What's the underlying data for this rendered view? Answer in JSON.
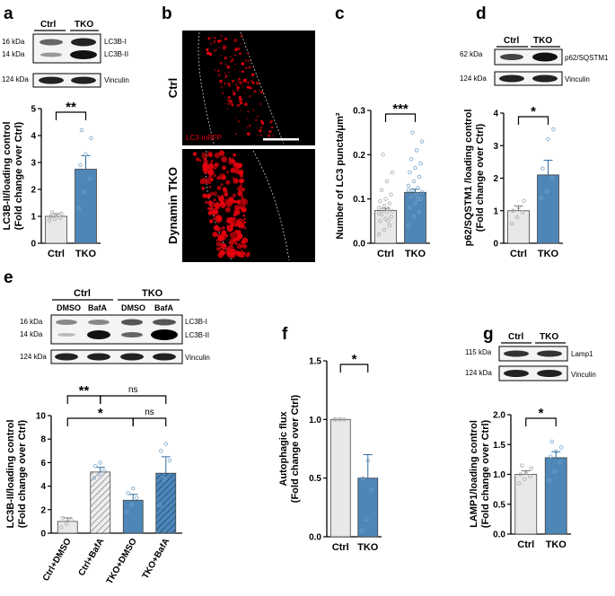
{
  "panels": {
    "a": "a",
    "b": "b",
    "c": "c",
    "d": "d",
    "e": "e",
    "f": "f",
    "g": "g"
  },
  "colors": {
    "ctrl_fill": "#e8e8e8",
    "tko_fill": "#4e86b8",
    "bar_edge": "#444444",
    "micro_bg": "#000000",
    "micro_signal": "#e8000d"
  },
  "blot_a": {
    "lane_labels": [
      "Ctrl",
      "TKO"
    ],
    "markers": [
      "16 kDa",
      "14 kDa",
      "124 kDa"
    ],
    "bands": [
      "LC3B-I",
      "LC3B-II",
      "Vinculin"
    ]
  },
  "micro_b": {
    "row_labels": [
      "Ctrl",
      "Dynamin TKO"
    ],
    "stain_label": "LC3-mRFP"
  },
  "blot_d": {
    "lane_labels": [
      "Ctrl",
      "TKO"
    ],
    "markers": [
      "62 kDa",
      "124 kDa"
    ],
    "bands": [
      "p62/SQSTM1",
      "Vinculin"
    ]
  },
  "blot_e": {
    "group_labels": [
      "Ctrl",
      "TKO"
    ],
    "lane_labels": [
      "DMSO",
      "BafA",
      "DMSO",
      "BafA"
    ],
    "markers": [
      "16 kDa",
      "14 kDa",
      "124 kDa"
    ],
    "bands": [
      "LC3B-I",
      "LC3B-II",
      "Vinculin"
    ]
  },
  "blot_g": {
    "lane_labels": [
      "Ctrl",
      "TKO"
    ],
    "markers": [
      "115 kDa",
      "124 kDa"
    ],
    "bands": [
      "Lamp1",
      "Vinculin"
    ]
  },
  "chart_data": [
    {
      "panel": "a",
      "type": "bar",
      "categories": [
        "Ctrl",
        "TKO"
      ],
      "values": [
        1.0,
        2.75
      ],
      "errors": [
        0.1,
        0.5
      ],
      "points": [
        [
          0.85,
          0.9,
          0.95,
          1.0,
          1.05,
          1.1,
          1.15
        ],
        [
          1.3,
          1.9,
          2.4,
          2.9,
          3.3,
          3.9,
          4.2
        ]
      ],
      "ylabel": "LC3B-II/loading control\n(Fold change over Ctrl)",
      "ylim": [
        0,
        5
      ],
      "yticks": [
        "0",
        "1",
        "2",
        "3",
        "4",
        "5"
      ],
      "significance": [
        {
          "pair": [
            0,
            1
          ],
          "label": "**"
        }
      ]
    },
    {
      "panel": "c",
      "type": "bar",
      "categories": [
        "Ctrl",
        "TKO"
      ],
      "values": [
        0.074,
        0.115
      ],
      "errors": [
        0.005,
        0.007
      ],
      "points": [
        [
          0.02,
          0.03,
          0.04,
          0.05,
          0.055,
          0.06,
          0.065,
          0.07,
          0.072,
          0.075,
          0.078,
          0.08,
          0.085,
          0.09,
          0.095,
          0.1,
          0.11,
          0.12,
          0.14,
          0.16,
          0.2,
          0.05,
          0.068
        ],
        [
          0.04,
          0.06,
          0.07,
          0.08,
          0.09,
          0.1,
          0.105,
          0.11,
          0.115,
          0.12,
          0.125,
          0.13,
          0.14,
          0.15,
          0.16,
          0.17,
          0.18,
          0.19,
          0.21,
          0.23,
          0.25,
          0.1,
          0.12
        ]
      ],
      "ylabel": "Number of LC3 puncta/μm²",
      "ylim": [
        0,
        0.3
      ],
      "yticks": [
        "0.0",
        "0.1",
        "0.2",
        "0.3"
      ],
      "significance": [
        {
          "pair": [
            0,
            1
          ],
          "label": "***"
        }
      ]
    },
    {
      "panel": "d",
      "type": "bar",
      "categories": [
        "Ctrl",
        "TKO"
      ],
      "values": [
        1.0,
        2.1
      ],
      "errors": [
        0.15,
        0.45
      ],
      "points": [
        [
          0.6,
          0.8,
          0.95,
          1.0,
          1.1,
          1.3
        ],
        [
          1.4,
          1.6,
          2.0,
          2.3,
          3.2,
          3.5
        ]
      ],
      "ylabel": "p62/SQSTM1 /loading control\n(Fold change over Ctrl)",
      "ylim": [
        0,
        4
      ],
      "yticks": [
        "0",
        "1",
        "2",
        "3",
        "4"
      ],
      "significance": [
        {
          "pair": [
            0,
            1
          ],
          "label": "*"
        }
      ]
    },
    {
      "panel": "e",
      "type": "bar",
      "categories": [
        "Ctrl+DMSO",
        "Ctrl+BafA",
        "TKO+DMSO",
        "TKO+BafA"
      ],
      "values": [
        1.0,
        5.2,
        2.8,
        5.1
      ],
      "errors": [
        0.3,
        0.4,
        0.5,
        1.4
      ],
      "points": [
        [
          0.5,
          0.8,
          1.1,
          1.3
        ],
        [
          4.7,
          5.0,
          5.3,
          5.7,
          6.0
        ],
        [
          1.8,
          2.4,
          3.0,
          3.4,
          3.8
        ],
        [
          2.4,
          4.6,
          6.2,
          7.0,
          7.6
        ]
      ],
      "ylabel": "LC3B-II/loading control\n(Fold change over Ctrl)",
      "ylim": [
        0,
        10
      ],
      "yticks": [
        "0",
        "2",
        "4",
        "6",
        "8",
        "10"
      ],
      "significance": [
        {
          "pair": [
            0,
            1
          ],
          "label": "**"
        },
        {
          "pair": [
            1,
            3
          ],
          "label": "ns"
        },
        {
          "pair": [
            0,
            2
          ],
          "label": "*"
        },
        {
          "pair": [
            2,
            3
          ],
          "label": "ns"
        }
      ]
    },
    {
      "panel": "f",
      "type": "bar",
      "categories": [
        "Ctrl",
        "TKO"
      ],
      "values": [
        1.0,
        0.5
      ],
      "errors": [
        0.0,
        0.2
      ],
      "points": [
        [
          1.0,
          1.0,
          1.0,
          1.0,
          1.0
        ],
        [
          0.05,
          0.15,
          0.4,
          0.5,
          0.65
        ]
      ],
      "ylabel": "Autophagic flux\n(Fold change over Ctrl)",
      "ylim": [
        0,
        1.5
      ],
      "yticks": [
        "0.0",
        "0.5",
        "1.0",
        "1.5"
      ],
      "significance": [
        {
          "pair": [
            0,
            1
          ],
          "label": "*"
        }
      ]
    },
    {
      "panel": "g",
      "type": "bar",
      "categories": [
        "Ctrl",
        "TKO"
      ],
      "values": [
        1.0,
        1.28
      ],
      "errors": [
        0.06,
        0.1
      ],
      "points": [
        [
          0.85,
          0.92,
          0.97,
          1.0,
          1.02,
          1.1,
          1.15
        ],
        [
          0.9,
          1.05,
          1.2,
          1.3,
          1.38,
          1.45,
          1.55
        ]
      ],
      "ylabel": "LAMP1/loading control\n(Fold change over Ctrl)",
      "ylim": [
        0,
        2.0
      ],
      "yticks": [
        "0.0",
        "0.5",
        "1.0",
        "1.5",
        "2.0"
      ],
      "significance": [
        {
          "pair": [
            0,
            1
          ],
          "label": "*"
        }
      ]
    }
  ]
}
